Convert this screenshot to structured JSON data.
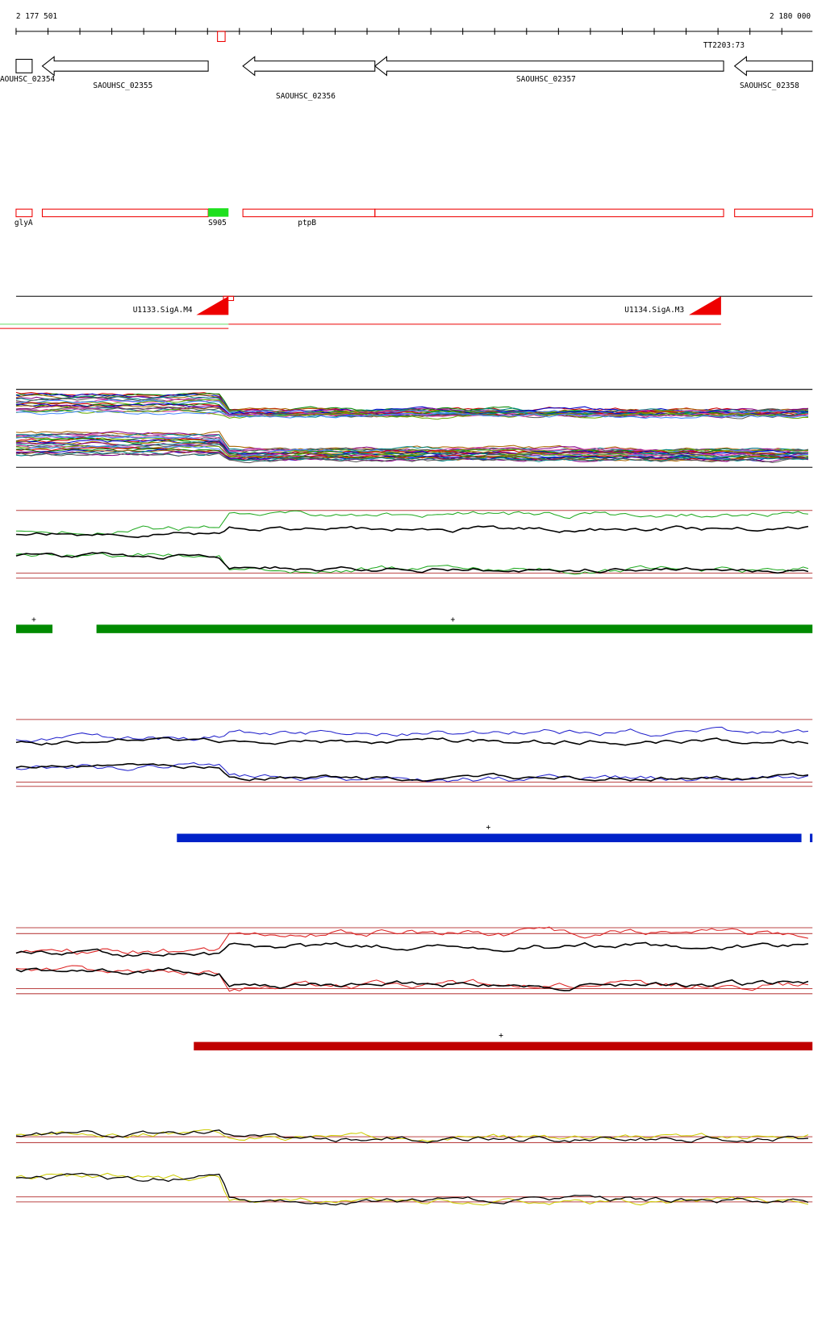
{
  "ruler": {
    "start_label": "2 177 501",
    "end_label": "2 180 000",
    "marker_label": "TT2203:73"
  },
  "genes": [
    "AOUHSC_02354",
    "SAOUHSC_02355",
    "SAOUHSC_02356",
    "SAOUHSC_02357",
    "SAOUHSC_02358"
  ],
  "annotations": [
    "glyA",
    "S905",
    "ptpB"
  ],
  "promoters": [
    "U1133.SigA.M4",
    "U1134.SigA.M3"
  ],
  "strand_marks": [
    "+",
    "+",
    "+",
    "+"
  ]
}
